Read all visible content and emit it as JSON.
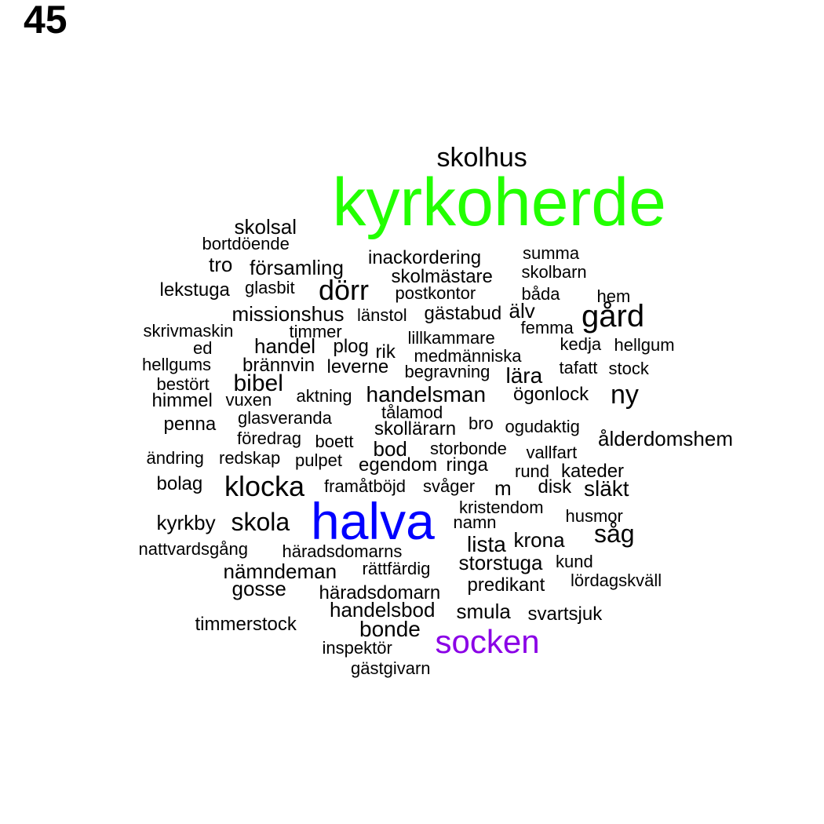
{
  "number": "45",
  "colors": {
    "default": "#000000",
    "green": "#22ff00",
    "blue": "#0000ff",
    "purple": "#8a00e6"
  },
  "words": [
    {
      "text": "skolhus"
    },
    {
      "text": "kyrkoherde",
      "color": "#22ff00"
    },
    {
      "text": "skolsal"
    },
    {
      "text": "bortdöende"
    },
    {
      "text": "summa"
    },
    {
      "text": "inackordering"
    },
    {
      "text": "tro"
    },
    {
      "text": "församling"
    },
    {
      "text": "skolbarn"
    },
    {
      "text": "skolmästare"
    },
    {
      "text": "lekstuga"
    },
    {
      "text": "glasbit"
    },
    {
      "text": "dörr"
    },
    {
      "text": "postkontor"
    },
    {
      "text": "båda"
    },
    {
      "text": "hem"
    },
    {
      "text": "missionshus"
    },
    {
      "text": "länstol"
    },
    {
      "text": "gästabud"
    },
    {
      "text": "älv"
    },
    {
      "text": "gård"
    },
    {
      "text": "skrivmaskin"
    },
    {
      "text": "timmer"
    },
    {
      "text": "femma"
    },
    {
      "text": "lillkammare"
    },
    {
      "text": "ed"
    },
    {
      "text": "handel"
    },
    {
      "text": "plog"
    },
    {
      "text": "rik"
    },
    {
      "text": "kedja"
    },
    {
      "text": "hellgum"
    },
    {
      "text": "medmänniska"
    },
    {
      "text": "hellgums"
    },
    {
      "text": "brännvin"
    },
    {
      "text": "leverne"
    },
    {
      "text": "begravning"
    },
    {
      "text": "tafatt"
    },
    {
      "text": "stock"
    },
    {
      "text": "lära"
    },
    {
      "text": "bestört"
    },
    {
      "text": "bibel"
    },
    {
      "text": "handelsman"
    },
    {
      "text": "aktning"
    },
    {
      "text": "ögonlock"
    },
    {
      "text": "ny"
    },
    {
      "text": "himmel"
    },
    {
      "text": "vuxen"
    },
    {
      "text": "tålamod"
    },
    {
      "text": "glasveranda"
    },
    {
      "text": "skollärarn"
    },
    {
      "text": "bro"
    },
    {
      "text": "ogudaktig"
    },
    {
      "text": "penna"
    },
    {
      "text": "föredrag"
    },
    {
      "text": "ålderdomshem"
    },
    {
      "text": "boett"
    },
    {
      "text": "bod"
    },
    {
      "text": "storbonde"
    },
    {
      "text": "vallfart"
    },
    {
      "text": "ändring"
    },
    {
      "text": "redskap"
    },
    {
      "text": "pulpet"
    },
    {
      "text": "egendom"
    },
    {
      "text": "ringa"
    },
    {
      "text": "rund"
    },
    {
      "text": "kateder"
    },
    {
      "text": "bolag"
    },
    {
      "text": "klocka"
    },
    {
      "text": "framåtböjd"
    },
    {
      "text": "svåger"
    },
    {
      "text": "m"
    },
    {
      "text": "disk"
    },
    {
      "text": "släkt"
    },
    {
      "text": "kristendom"
    },
    {
      "text": "halva",
      "color": "#0000ff"
    },
    {
      "text": "namn"
    },
    {
      "text": "husmor"
    },
    {
      "text": "kyrkby"
    },
    {
      "text": "skola"
    },
    {
      "text": "såg"
    },
    {
      "text": "krona"
    },
    {
      "text": "lista"
    },
    {
      "text": "nattvardsgång"
    },
    {
      "text": "häradsdomarns"
    },
    {
      "text": "kund"
    },
    {
      "text": "storstuga"
    },
    {
      "text": "rättfärdig"
    },
    {
      "text": "nämndeman"
    },
    {
      "text": "lördagskväll"
    },
    {
      "text": "predikant"
    },
    {
      "text": "gosse"
    },
    {
      "text": "häradsdomarn"
    },
    {
      "text": "handelsbod"
    },
    {
      "text": "smula"
    },
    {
      "text": "svartsjuk"
    },
    {
      "text": "timmerstock"
    },
    {
      "text": "bonde"
    },
    {
      "text": "socken",
      "color": "#8a00e6"
    },
    {
      "text": "inspektör"
    },
    {
      "text": "gästgivarn"
    }
  ]
}
